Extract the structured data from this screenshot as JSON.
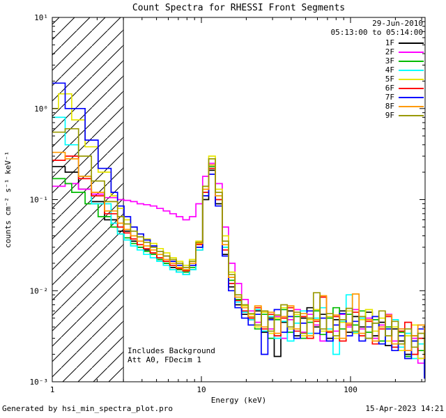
{
  "title": "Count Spectra for RHESSI Front Segments",
  "header": {
    "date": "29-Jun-2010",
    "time_range": "05:13:00 to 05:14:00"
  },
  "annotations": {
    "background": "Includes Background",
    "attenuator": "Att A0, FDecim 1"
  },
  "footer": {
    "generated_by": "Generated by hsi_min_spectra_plot.pro",
    "timestamp": "15-Apr-2023 14:21"
  },
  "chart_data": {
    "type": "line",
    "title": "Count Spectra for RHESSI Front Segments",
    "xlabel": "Energy (keV)",
    "ylabel": "counts cm⁻² s⁻¹ keV⁻¹",
    "xscale": "log",
    "yscale": "log",
    "xlim": [
      1,
      316.23
    ],
    "ylim": [
      0.001,
      10
    ],
    "grid": false,
    "step": true,
    "legend_position": "top-right",
    "excluded_region": {
      "xmin": 1,
      "xmax": 3,
      "style": "diagonal-hatch"
    },
    "xticks": [
      {
        "v": 1,
        "label": "1"
      },
      {
        "v": 10,
        "label": "10"
      },
      {
        "v": 100,
        "label": "100"
      }
    ],
    "yticks": [
      {
        "v": 0.001,
        "label": "10⁻³"
      },
      {
        "v": 0.01,
        "label": "10⁻²"
      },
      {
        "v": 0.1,
        "label": "10⁻¹"
      },
      {
        "v": 1,
        "label": "10⁰"
      },
      {
        "v": 10,
        "label": "10¹"
      }
    ],
    "x": [
      1.0,
      1.1,
      1.22,
      1.35,
      1.5,
      1.66,
      1.83,
      2.03,
      2.24,
      2.48,
      2.74,
      3.03,
      3.35,
      3.71,
      4.1,
      4.54,
      5.02,
      5.55,
      6.14,
      6.79,
      7.51,
      8.31,
      9.19,
      10.2,
      11.2,
      12.4,
      13.8,
      15.2,
      16.8,
      18.6,
      20.6,
      22.8,
      25.2,
      27.9,
      30.8,
      34.1,
      37.7,
      41.7,
      46.1,
      51.0,
      56.4,
      62.4,
      69.0,
      76.3,
      84.4,
      93.4,
      103,
      114,
      126,
      140,
      155,
      171,
      189,
      209,
      231,
      256,
      283,
      313
    ],
    "series": [
      {
        "name": "1F",
        "color": "#000000",
        "values": [
          0.23,
          0.23,
          0.2,
          0.2,
          0.13,
          0.13,
          0.095,
          0.095,
          0.06,
          0.06,
          0.045,
          0.045,
          0.035,
          0.03,
          0.028,
          0.025,
          0.022,
          0.02,
          0.018,
          0.016,
          0.015,
          0.017,
          0.028,
          0.1,
          0.21,
          0.09,
          0.025,
          0.011,
          0.007,
          0.0055,
          0.0048,
          0.006,
          0.0035,
          0.005,
          0.0019,
          0.0045,
          0.006,
          0.0032,
          0.005,
          0.0065,
          0.004,
          0.0055,
          0.003,
          0.0048,
          0.006,
          0.0035,
          0.0052,
          0.004,
          0.0058,
          0.0032,
          0.0045,
          0.0025,
          0.0038,
          0.0028,
          0.002,
          0.0032,
          0.0018,
          0.0025
        ]
      },
      {
        "name": "2F",
        "color": "#ff00ff",
        "values": [
          0.14,
          0.14,
          0.15,
          0.15,
          0.13,
          0.13,
          0.115,
          0.115,
          0.105,
          0.105,
          0.1,
          0.098,
          0.095,
          0.09,
          0.088,
          0.085,
          0.08,
          0.075,
          0.07,
          0.065,
          0.06,
          0.065,
          0.09,
          0.18,
          0.25,
          0.15,
          0.05,
          0.02,
          0.012,
          0.008,
          0.006,
          0.0045,
          0.006,
          0.0038,
          0.0052,
          0.003,
          0.0048,
          0.0062,
          0.0035,
          0.0055,
          0.0042,
          0.0028,
          0.005,
          0.0036,
          0.0055,
          0.004,
          0.0062,
          0.0038,
          0.005,
          0.003,
          0.0042,
          0.0055,
          0.0028,
          0.0038,
          0.0022,
          0.003,
          0.0016,
          0.0012
        ]
      },
      {
        "name": "3F",
        "color": "#00bb00",
        "values": [
          0.17,
          0.17,
          0.15,
          0.12,
          0.12,
          0.09,
          0.09,
          0.065,
          0.065,
          0.05,
          0.042,
          0.038,
          0.033,
          0.03,
          0.027,
          0.025,
          0.022,
          0.02,
          0.019,
          0.017,
          0.016,
          0.018,
          0.03,
          0.11,
          0.23,
          0.1,
          0.03,
          0.013,
          0.008,
          0.006,
          0.005,
          0.0038,
          0.0055,
          0.003,
          0.0048,
          0.0062,
          0.0035,
          0.0052,
          0.003,
          0.0045,
          0.006,
          0.0033,
          0.005,
          0.0065,
          0.0038,
          0.0055,
          0.0042,
          0.006,
          0.0035,
          0.0048,
          0.0028,
          0.004,
          0.0024,
          0.0035,
          0.0019,
          0.0028,
          0.0022,
          0.0012
        ]
      },
      {
        "name": "4F",
        "color": "#00ffff",
        "values": [
          0.8,
          0.8,
          0.4,
          0.4,
          0.18,
          0.18,
          0.09,
          0.09,
          0.09,
          0.055,
          0.042,
          0.036,
          0.031,
          0.028,
          0.025,
          0.023,
          0.021,
          0.019,
          0.017,
          0.016,
          0.015,
          0.017,
          0.028,
          0.12,
          0.24,
          0.11,
          0.03,
          0.012,
          0.0075,
          0.0058,
          0.0048,
          0.0062,
          0.0036,
          0.0052,
          0.003,
          0.0046,
          0.0028,
          0.0044,
          0.006,
          0.0034,
          0.005,
          0.0065,
          0.0038,
          0.002,
          0.0046,
          0.009,
          0.0035,
          0.005,
          0.003,
          0.0044,
          0.0026,
          0.0038,
          0.0048,
          0.0024,
          0.0034,
          0.0018,
          0.0026,
          0.0012
        ]
      },
      {
        "name": "5F",
        "color": "#e6e600",
        "values": [
          1.0,
          1.45,
          1.45,
          0.75,
          0.75,
          0.38,
          0.38,
          0.2,
          0.2,
          0.11,
          0.08,
          0.06,
          0.05,
          0.042,
          0.037,
          0.033,
          0.029,
          0.026,
          0.023,
          0.021,
          0.019,
          0.022,
          0.035,
          0.14,
          0.3,
          0.13,
          0.04,
          0.016,
          0.009,
          0.0068,
          0.0055,
          0.004,
          0.0058,
          0.0034,
          0.005,
          0.0065,
          0.0038,
          0.0055,
          0.0032,
          0.0048,
          0.0062,
          0.0036,
          0.0052,
          0.003,
          0.0045,
          0.006,
          0.0034,
          0.0048,
          0.0062,
          0.0036,
          0.005,
          0.0028,
          0.004,
          0.0022,
          0.0032,
          0.0042,
          0.0018,
          0.0026
        ]
      },
      {
        "name": "6F",
        "color": "#ff0000",
        "values": [
          0.27,
          0.27,
          0.3,
          0.3,
          0.17,
          0.17,
          0.11,
          0.11,
          0.07,
          0.07,
          0.05,
          0.043,
          0.037,
          0.032,
          0.029,
          0.026,
          0.023,
          0.021,
          0.019,
          0.0175,
          0.0165,
          0.019,
          0.032,
          0.12,
          0.22,
          0.1,
          0.028,
          0.012,
          0.0078,
          0.006,
          0.005,
          0.0065,
          0.0038,
          0.0055,
          0.0032,
          0.005,
          0.0065,
          0.0036,
          0.0052,
          0.003,
          0.0046,
          0.0085,
          0.0035,
          0.0052,
          0.0028,
          0.0042,
          0.0058,
          0.0032,
          0.0046,
          0.0026,
          0.0038,
          0.0052,
          0.0024,
          0.0036,
          0.0045,
          0.002,
          0.003,
          0.0016
        ]
      },
      {
        "name": "7F",
        "color": "#0000ff",
        "values": [
          1.9,
          1.9,
          1.0,
          1.0,
          1.0,
          0.45,
          0.45,
          0.22,
          0.22,
          0.12,
          0.085,
          0.065,
          0.05,
          0.042,
          0.036,
          0.031,
          0.027,
          0.024,
          0.021,
          0.019,
          0.017,
          0.019,
          0.03,
          0.11,
          0.19,
          0.085,
          0.024,
          0.01,
          0.0065,
          0.005,
          0.0042,
          0.0055,
          0.002,
          0.0048,
          0.0062,
          0.0035,
          0.0052,
          0.003,
          0.0044,
          0.006,
          0.0034,
          0.005,
          0.0028,
          0.0042,
          0.0056,
          0.0032,
          0.0046,
          0.0028,
          0.004,
          0.0052,
          0.0026,
          0.0038,
          0.0022,
          0.0032,
          0.0018,
          0.0028,
          0.0038,
          0.0011
        ]
      },
      {
        "name": "8F",
        "color": "#ff9900",
        "values": [
          0.33,
          0.33,
          0.28,
          0.28,
          0.18,
          0.18,
          0.12,
          0.12,
          0.075,
          0.075,
          0.055,
          0.047,
          0.04,
          0.035,
          0.031,
          0.028,
          0.025,
          0.022,
          0.02,
          0.018,
          0.017,
          0.02,
          0.033,
          0.13,
          0.24,
          0.11,
          0.032,
          0.014,
          0.0085,
          0.0065,
          0.0052,
          0.0068,
          0.004,
          0.0058,
          0.0034,
          0.0052,
          0.0068,
          0.0038,
          0.0056,
          0.0032,
          0.0048,
          0.0088,
          0.0036,
          0.0054,
          0.003,
          0.0044,
          0.0092,
          0.0034,
          0.0048,
          0.0028,
          0.004,
          0.0054,
          0.0026,
          0.0038,
          0.0022,
          0.0032,
          0.0042,
          0.0018
        ]
      },
      {
        "name": "9F",
        "color": "#999900",
        "values": [
          0.55,
          0.55,
          0.6,
          0.6,
          0.3,
          0.3,
          0.16,
          0.16,
          0.095,
          0.095,
          0.065,
          0.054,
          0.045,
          0.039,
          0.034,
          0.03,
          0.027,
          0.024,
          0.022,
          0.02,
          0.018,
          0.021,
          0.034,
          0.14,
          0.28,
          0.12,
          0.035,
          0.015,
          0.009,
          0.007,
          0.0056,
          0.0042,
          0.006,
          0.0036,
          0.0054,
          0.007,
          0.004,
          0.0058,
          0.0034,
          0.005,
          0.0095,
          0.0038,
          0.0056,
          0.0032,
          0.0048,
          0.0064,
          0.0036,
          0.0052,
          0.003,
          0.0044,
          0.006,
          0.0032,
          0.0046,
          0.0026,
          0.0038,
          0.0024,
          0.0034,
          0.002
        ]
      }
    ]
  }
}
